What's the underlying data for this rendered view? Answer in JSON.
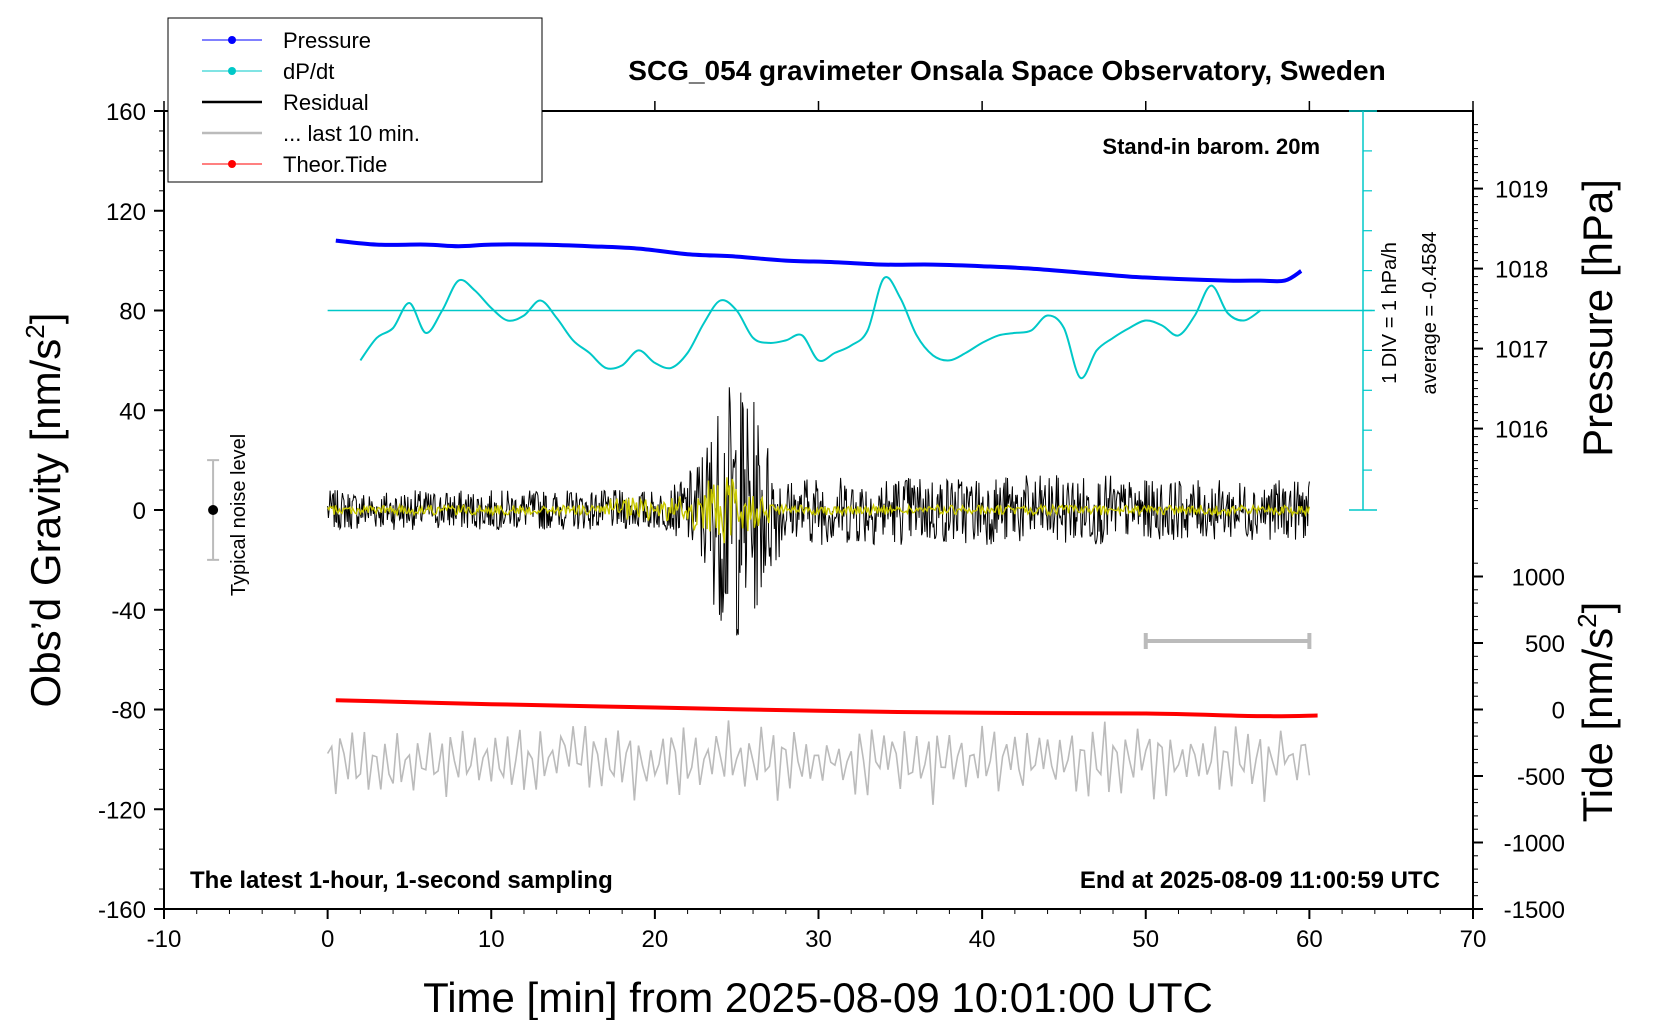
{
  "chart_data": {
    "type": "line",
    "title": "SCG_054 gravimeter Onsala Space Observatory, Sweden",
    "xlabel": "Time [min] from 2025-08-09 10:01:00 UTC",
    "ylabel_left": "Obs’d Gravity [nm/s",
    "ylabel_left_sup": "2",
    "ylabel_left_end": "]",
    "ylabel_right_pressure": "Pressure [hPa]",
    "ylabel_right_tide": "Tide [nm/s",
    "ylabel_right_tide_sup": "2",
    "ylabel_right_tide_end": "]",
    "xlim": [
      -10,
      70
    ],
    "ylim": [
      -160,
      160
    ],
    "x_ticks": [
      "-10",
      "0",
      "10",
      "20",
      "30",
      "40",
      "50",
      "60",
      "70"
    ],
    "y_ticks": [
      "160",
      "120",
      "80",
      "40",
      "0",
      "-40",
      "-80",
      "-120",
      "-160"
    ],
    "pressure_ticks": [
      "1019",
      "1018",
      "1017",
      "1016"
    ],
    "tide_ticks": [
      "1000",
      "500",
      "0",
      "-500",
      "-1000",
      "-1500"
    ],
    "annotations": {
      "barometer": "Stand-in barom. 20m",
      "sampling": "The latest 1-hour, 1-second sampling",
      "end_time": "End at 2025-08-09 11:00:59 UTC",
      "div": "1 DIV = 1 hPa/h",
      "average": "average = -0.4584",
      "noise": "Typical noise level"
    },
    "legend": [
      {
        "label": "Pressure",
        "color": "#0000ff",
        "marker": true
      },
      {
        "label": "dP/dt",
        "color": "#00c8c8",
        "marker": true
      },
      {
        "label": "Residual",
        "color": "#000000",
        "marker": false
      },
      {
        "label": "... last 10 min.",
        "color": "#bbbbbb",
        "marker": false
      },
      {
        "label": "Theor.Tide",
        "color": "#ff0000",
        "marker": true
      }
    ],
    "series": [
      {
        "name": "Pressure",
        "axis": "pressure",
        "x": [
          0.5,
          3,
          6,
          8,
          10,
          13,
          16,
          19,
          22,
          25,
          28,
          31,
          34,
          37,
          40,
          43,
          46,
          49,
          52,
          55,
          57,
          58.5,
          59.5
        ],
        "y": [
          1018.35,
          1018.3,
          1018.3,
          1018.28,
          1018.3,
          1018.3,
          1018.28,
          1018.25,
          1018.18,
          1018.15,
          1018.1,
          1018.08,
          1018.05,
          1018.05,
          1018.03,
          1018.0,
          1017.95,
          1017.9,
          1017.87,
          1017.85,
          1017.85,
          1017.85,
          1017.97
        ]
      },
      {
        "name": "dP/dt",
        "axis": "gravity",
        "x": [
          2,
          3,
          4,
          5,
          6,
          7,
          8,
          9,
          10,
          11,
          12,
          13,
          14,
          15,
          16,
          17,
          18,
          19,
          20,
          21,
          22,
          23,
          24,
          25,
          26,
          27,
          28,
          29,
          30,
          31,
          32,
          33,
          34,
          35,
          36,
          37,
          38,
          39,
          40,
          41,
          42,
          43,
          44,
          45,
          46,
          47,
          48,
          49,
          50,
          51,
          52,
          53,
          54,
          55,
          56,
          57
        ],
        "y": [
          60,
          69,
          73,
          83,
          71,
          80,
          92,
          88,
          81,
          76,
          78,
          84,
          77,
          68,
          63,
          57,
          58,
          64,
          59,
          57,
          63,
          75,
          84,
          80,
          69,
          67,
          68,
          70,
          60,
          63,
          66,
          72,
          93,
          85,
          70,
          62,
          60,
          63,
          67,
          70,
          71,
          72,
          78,
          73,
          53,
          64,
          69,
          73,
          76,
          74,
          70,
          78,
          90,
          79,
          76,
          80
        ]
      },
      {
        "name": "Theor.Tide",
        "axis": "tide",
        "x": [
          0.5,
          10,
          20,
          30,
          40,
          50,
          57,
          60.5
        ],
        "y": [
          70,
          40,
          15,
          -10,
          -25,
          -30,
          -50,
          -45
        ]
      }
    ],
    "reference_line_y": 80,
    "noise_bar": {
      "x": -7,
      "low": -20,
      "high": 20
    },
    "scale_bar_x": [
      50,
      60
    ]
  }
}
